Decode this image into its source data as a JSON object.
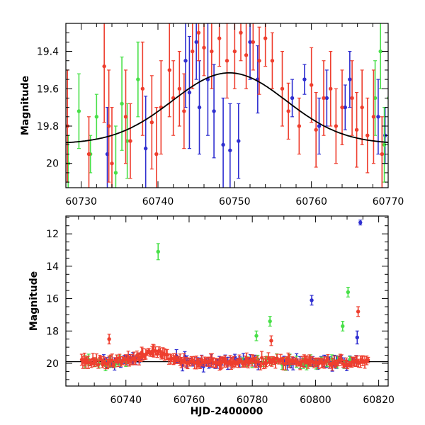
{
  "chart_data": [
    {
      "type": "scatter",
      "panel": "top",
      "title": "",
      "xlabel": "",
      "ylabel": "Magnitude",
      "xlim": [
        60728,
        60770
      ],
      "ylim": [
        20.13,
        19.25
      ],
      "y_inverted": true,
      "grid": false,
      "xticks": [
        60730,
        60740,
        60750,
        60760,
        60770
      ],
      "yticks": [
        19.4,
        19.6,
        19.8,
        20.0
      ],
      "xtick_labels": [
        "60730",
        "60740",
        "60750",
        "60760",
        "60770"
      ],
      "ytick_labels": [
        "19.4",
        "19.6",
        "19.8",
        "20"
      ],
      "model_curve": {
        "peak_x": 60749.3,
        "peak_mag": 19.515,
        "baseline_mag": 19.895,
        "width": 10.5,
        "color": "#000000"
      },
      "series": [
        {
          "color": "#2f2fd0",
          "points": [
            [
              60733.4,
              19.95,
              0.25
            ],
            [
              60738.4,
              19.92,
              0.28
            ],
            [
              60743.6,
              19.45,
              0.25
            ],
            [
              60744.1,
              19.62,
              0.3
            ],
            [
              60745.0,
              19.35,
              0.2
            ],
            [
              60745.4,
              19.7,
              0.25
            ],
            [
              60746.5,
              19.55,
              0.3
            ],
            [
              60747.3,
              19.72,
              0.25
            ],
            [
              60748.5,
              19.9,
              0.25
            ],
            [
              60749.4,
              19.93,
              0.25
            ],
            [
              60750.5,
              19.88,
              0.2
            ],
            [
              60752.0,
              19.35,
              0.2
            ],
            [
              60753.0,
              19.55,
              0.18
            ],
            [
              60757.5,
              19.65,
              0.1
            ],
            [
              60759.1,
              19.55,
              0.08
            ],
            [
              60761.0,
              19.8,
              0.15
            ],
            [
              60762.0,
              19.65,
              0.15
            ],
            [
              60764.4,
              19.7,
              0.12
            ],
            [
              60765.0,
              19.55,
              0.15
            ],
            [
              60768.7,
              19.75,
              0.2
            ],
            [
              60769.6,
              19.85,
              0.15
            ],
            [
              60770.2,
              19.95,
              0.12
            ]
          ]
        },
        {
          "color": "#48e048",
          "points": [
            [
              60728.3,
              20.0,
              0.15
            ],
            [
              60729.7,
              19.72,
              0.2
            ],
            [
              60731.2,
              19.95,
              0.1
            ],
            [
              60732.0,
              19.75,
              0.12
            ],
            [
              60734.5,
              20.05,
              0.25
            ],
            [
              60735.3,
              19.68,
              0.25
            ],
            [
              60736.0,
              19.88,
              0.2
            ],
            [
              60737.4,
              19.55,
              0.2
            ],
            [
              60768.3,
              19.65,
              0.2
            ],
            [
              60769.0,
              19.4,
              0.2
            ],
            [
              60769.5,
              19.9,
              0.2
            ],
            [
              60770.1,
              19.65,
              0.2
            ]
          ]
        },
        {
          "color": "#ee3e2e",
          "points": [
            [
              60728.2,
              19.8,
              0.3
            ],
            [
              60731.0,
              19.95,
              0.2
            ],
            [
              60733.0,
              19.48,
              0.3
            ],
            [
              60733.6,
              19.8,
              0.3
            ],
            [
              60734.0,
              20.0,
              0.3
            ],
            [
              60735.8,
              19.75,
              0.25
            ],
            [
              60736.4,
              19.88,
              0.2
            ],
            [
              60738.0,
              19.6,
              0.25
            ],
            [
              60739.2,
              19.78,
              0.25
            ],
            [
              60739.8,
              19.95,
              0.25
            ],
            [
              60740.4,
              19.7,
              0.25
            ],
            [
              60741.5,
              19.5,
              0.25
            ],
            [
              60742.0,
              19.65,
              0.2
            ],
            [
              60742.8,
              19.6,
              0.2
            ],
            [
              60743.4,
              19.72,
              0.2
            ],
            [
              60744.5,
              19.4,
              0.2
            ],
            [
              60745.3,
              19.3,
              0.15
            ],
            [
              60746.0,
              19.38,
              0.15
            ],
            [
              60747.0,
              19.4,
              0.2
            ],
            [
              60748.0,
              19.33,
              0.15
            ],
            [
              60749.0,
              19.45,
              0.2
            ],
            [
              60750.0,
              19.4,
              0.2
            ],
            [
              60750.8,
              19.3,
              0.15
            ],
            [
              60751.5,
              19.42,
              0.18
            ],
            [
              60752.4,
              19.35,
              0.15
            ],
            [
              60753.2,
              19.45,
              0.18
            ],
            [
              60754.0,
              19.33,
              0.15
            ],
            [
              60754.9,
              19.45,
              0.15
            ],
            [
              60756.2,
              19.6,
              0.2
            ],
            [
              60757.0,
              19.72,
              0.15
            ],
            [
              60758.4,
              19.8,
              0.15
            ],
            [
              60760.0,
              19.58,
              0.2
            ],
            [
              60760.6,
              19.82,
              0.2
            ],
            [
              60761.6,
              19.65,
              0.2
            ],
            [
              60762.5,
              19.6,
              0.2
            ],
            [
              60763.2,
              19.8,
              0.2
            ],
            [
              60764.0,
              19.7,
              0.2
            ],
            [
              60765.3,
              19.65,
              0.2
            ],
            [
              60765.9,
              19.82,
              0.2
            ],
            [
              60766.6,
              19.7,
              0.2
            ],
            [
              60767.3,
              19.85,
              0.2
            ],
            [
              60768.1,
              19.75,
              0.25
            ],
            [
              60769.2,
              19.95,
              0.2
            ]
          ]
        }
      ]
    },
    {
      "type": "scatter",
      "panel": "bottom",
      "title": "",
      "xlabel": "HJD-2400000",
      "ylabel": "Magnitude",
      "xlim": [
        60721,
        60823
      ],
      "ylim": [
        21.4,
        10.9
      ],
      "y_inverted": true,
      "grid": false,
      "xticks": [
        60740,
        60760,
        60780,
        60800,
        60820
      ],
      "yticks": [
        12,
        14,
        16,
        18,
        20
      ],
      "xtick_labels": [
        "60740",
        "60760",
        "60780",
        "60800",
        "60820"
      ],
      "ytick_labels": [
        "12",
        "14",
        "16",
        "18",
        "20"
      ],
      "baseline_mag": 19.895,
      "outliers": [
        {
          "color": "#2f2fd0",
          "points": [
            [
              60814.2,
              11.3,
              0.15
            ],
            [
              60798.8,
              16.1,
              0.3
            ],
            [
              60813.2,
              18.4,
              0.4
            ]
          ]
        },
        {
          "color": "#48e048",
          "points": [
            [
              60750.2,
              13.1,
              0.5
            ],
            [
              60810.3,
              15.6,
              0.3
            ],
            [
              60808.6,
              17.7,
              0.3
            ],
            [
              60785.6,
              17.4,
              0.3
            ],
            [
              60781.3,
              18.3,
              0.3
            ]
          ]
        },
        {
          "color": "#ee3e2e",
          "points": [
            [
              60813.5,
              16.8,
              0.3
            ],
            [
              60734.7,
              18.5,
              0.3
            ],
            [
              60786.0,
              18.6,
              0.3
            ]
          ]
        }
      ],
      "dense_series": [
        {
          "color": "#2f2fd0",
          "ranges": [
            [
              60733,
              60745
            ],
            [
              60756,
              60782
            ],
            [
              60790,
              60813
            ]
          ],
          "step": 0.9
        },
        {
          "color": "#48e048",
          "ranges": [
            [
              60727,
              60740
            ],
            [
              60777,
              60811
            ]
          ],
          "step": 1.6
        },
        {
          "color": "#ee3e2e",
          "ranges": [
            [
              60726,
              60817
            ]
          ],
          "step": 0.45
        }
      ]
    }
  ]
}
